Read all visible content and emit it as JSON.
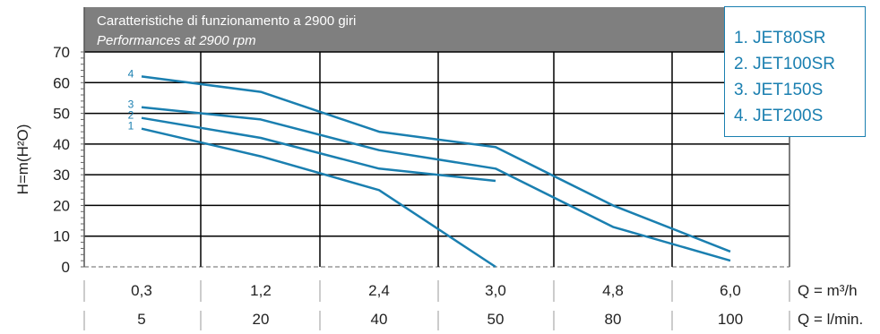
{
  "banner": {
    "line1": "Caratteristiche di funzionamento a 2900 giri",
    "line2": "Performances at 2900 rpm"
  },
  "legend": {
    "items": [
      "1. JET80SR",
      "2. JET100SR",
      "3. JET150S",
      "4. JET200S"
    ]
  },
  "colors": {
    "curve": "#1a7fb0",
    "banner": "#7f7f7f",
    "grid": "#000000"
  },
  "chart_data": {
    "type": "line",
    "ylabel": "H=m(H²O)",
    "ylim": [
      0,
      70
    ],
    "yticks": [
      0,
      10,
      20,
      30,
      40,
      50,
      60,
      70
    ],
    "categories_m3h": [
      "0,3",
      "1,2",
      "2,4",
      "3,0",
      "4,8",
      "6,0"
    ],
    "categories_lmin": [
      "5",
      "20",
      "40",
      "50",
      "80",
      "100"
    ],
    "unit_m3h": "Q = m³/h",
    "unit_lmin": "Q = l/min.",
    "series": [
      {
        "name": "1",
        "points": [
          [
            0,
            45
          ],
          [
            1,
            36
          ],
          [
            2,
            25
          ],
          [
            3,
            0
          ]
        ]
      },
      {
        "name": "2",
        "points": [
          [
            0,
            48.5
          ],
          [
            1,
            42
          ],
          [
            2,
            32
          ],
          [
            3,
            28
          ]
        ]
      },
      {
        "name": "3",
        "points": [
          [
            0,
            52
          ],
          [
            1,
            48
          ],
          [
            2,
            38
          ],
          [
            3,
            32
          ],
          [
            4,
            13
          ],
          [
            5,
            2
          ]
        ]
      },
      {
        "name": "4",
        "points": [
          [
            0,
            62
          ],
          [
            1,
            57
          ],
          [
            2,
            44
          ],
          [
            3,
            39
          ],
          [
            4,
            20
          ],
          [
            5,
            5
          ]
        ]
      }
    ]
  }
}
